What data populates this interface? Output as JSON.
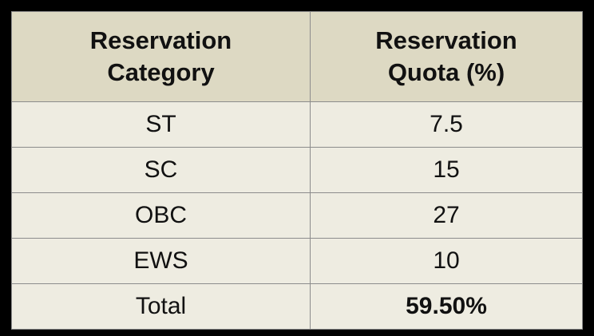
{
  "table": {
    "header": [
      "Reservation Category",
      "Reservation Quota (%)"
    ],
    "rows": [
      [
        "ST",
        "7.5"
      ],
      [
        "SC",
        "15"
      ],
      [
        "OBC",
        "27"
      ],
      [
        "EWS",
        "10"
      ],
      [
        "Total",
        "59.50%"
      ]
    ]
  }
}
